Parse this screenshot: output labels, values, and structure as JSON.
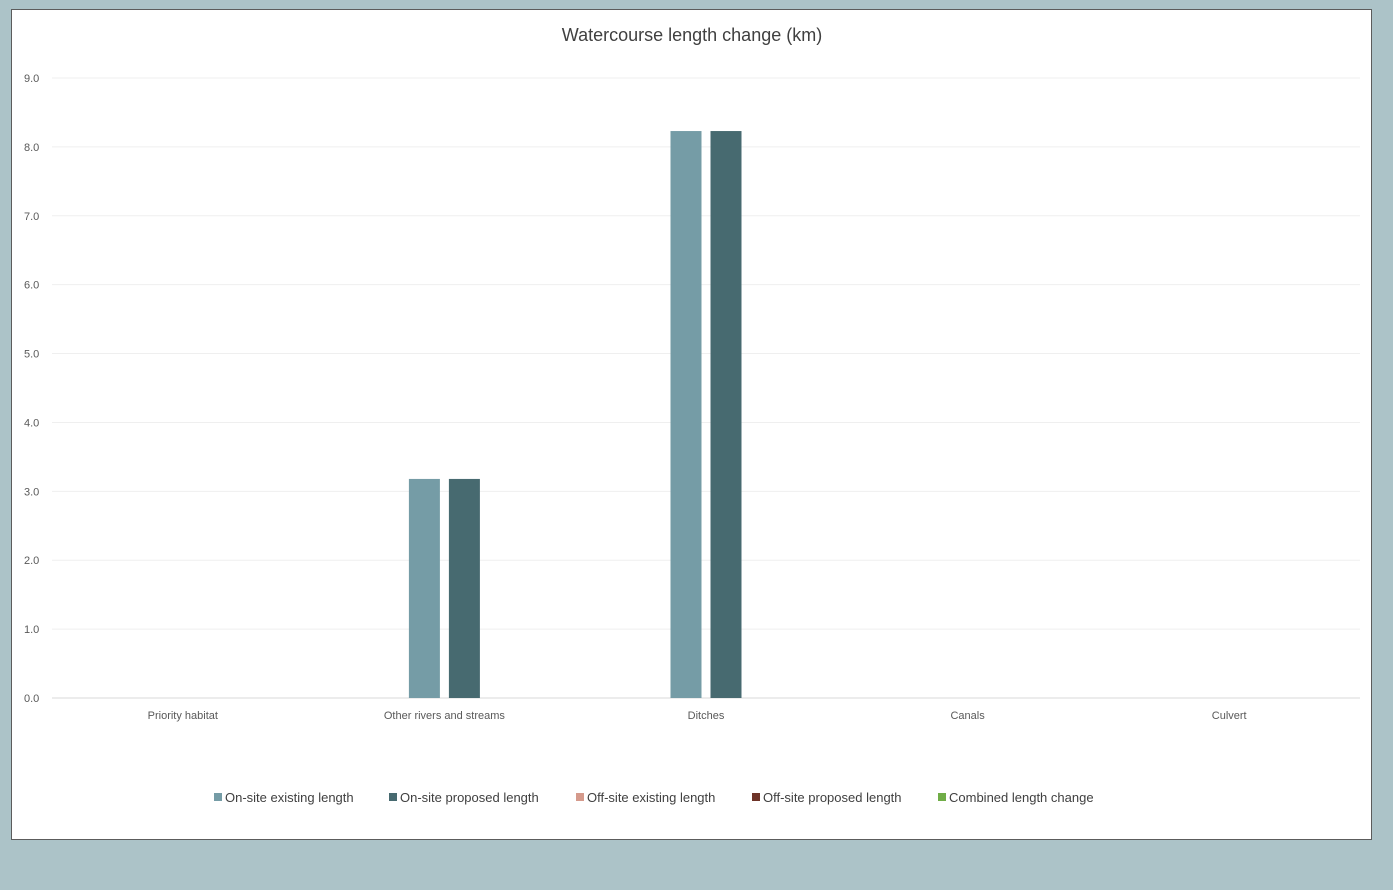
{
  "chart_data": {
    "type": "bar",
    "title": "Watercourse length change (km)",
    "xlabel": "",
    "ylabel": "",
    "ylim": [
      0,
      9
    ],
    "ytick_step": 1,
    "ytick_labels": [
      "0.0",
      "1.0",
      "2.0",
      "3.0",
      "4.0",
      "5.0",
      "6.0",
      "7.0",
      "8.0",
      "9.0"
    ],
    "grid": true,
    "legend_position": "bottom",
    "categories": [
      "Priority habitat",
      "Other rivers and streams",
      "Ditches",
      "Canals",
      "Culvert"
    ],
    "series": [
      {
        "name": "On-site existing length",
        "color": "#759ca6",
        "values": [
          0,
          3.18,
          8.23,
          0,
          0
        ]
      },
      {
        "name": "On-site proposed length",
        "color": "#476a70",
        "values": [
          0,
          3.18,
          8.23,
          0,
          0
        ]
      },
      {
        "name": "Off-site existing length",
        "color": "#d59a8c",
        "values": [
          0,
          0,
          0,
          0,
          0
        ]
      },
      {
        "name": "Off-site proposed length",
        "color": "#6e3328",
        "values": [
          0,
          0,
          0,
          0,
          0
        ]
      },
      {
        "name": "Combined length change",
        "color": "#70ad47",
        "values": [
          0,
          0,
          0,
          0,
          0
        ]
      }
    ]
  }
}
